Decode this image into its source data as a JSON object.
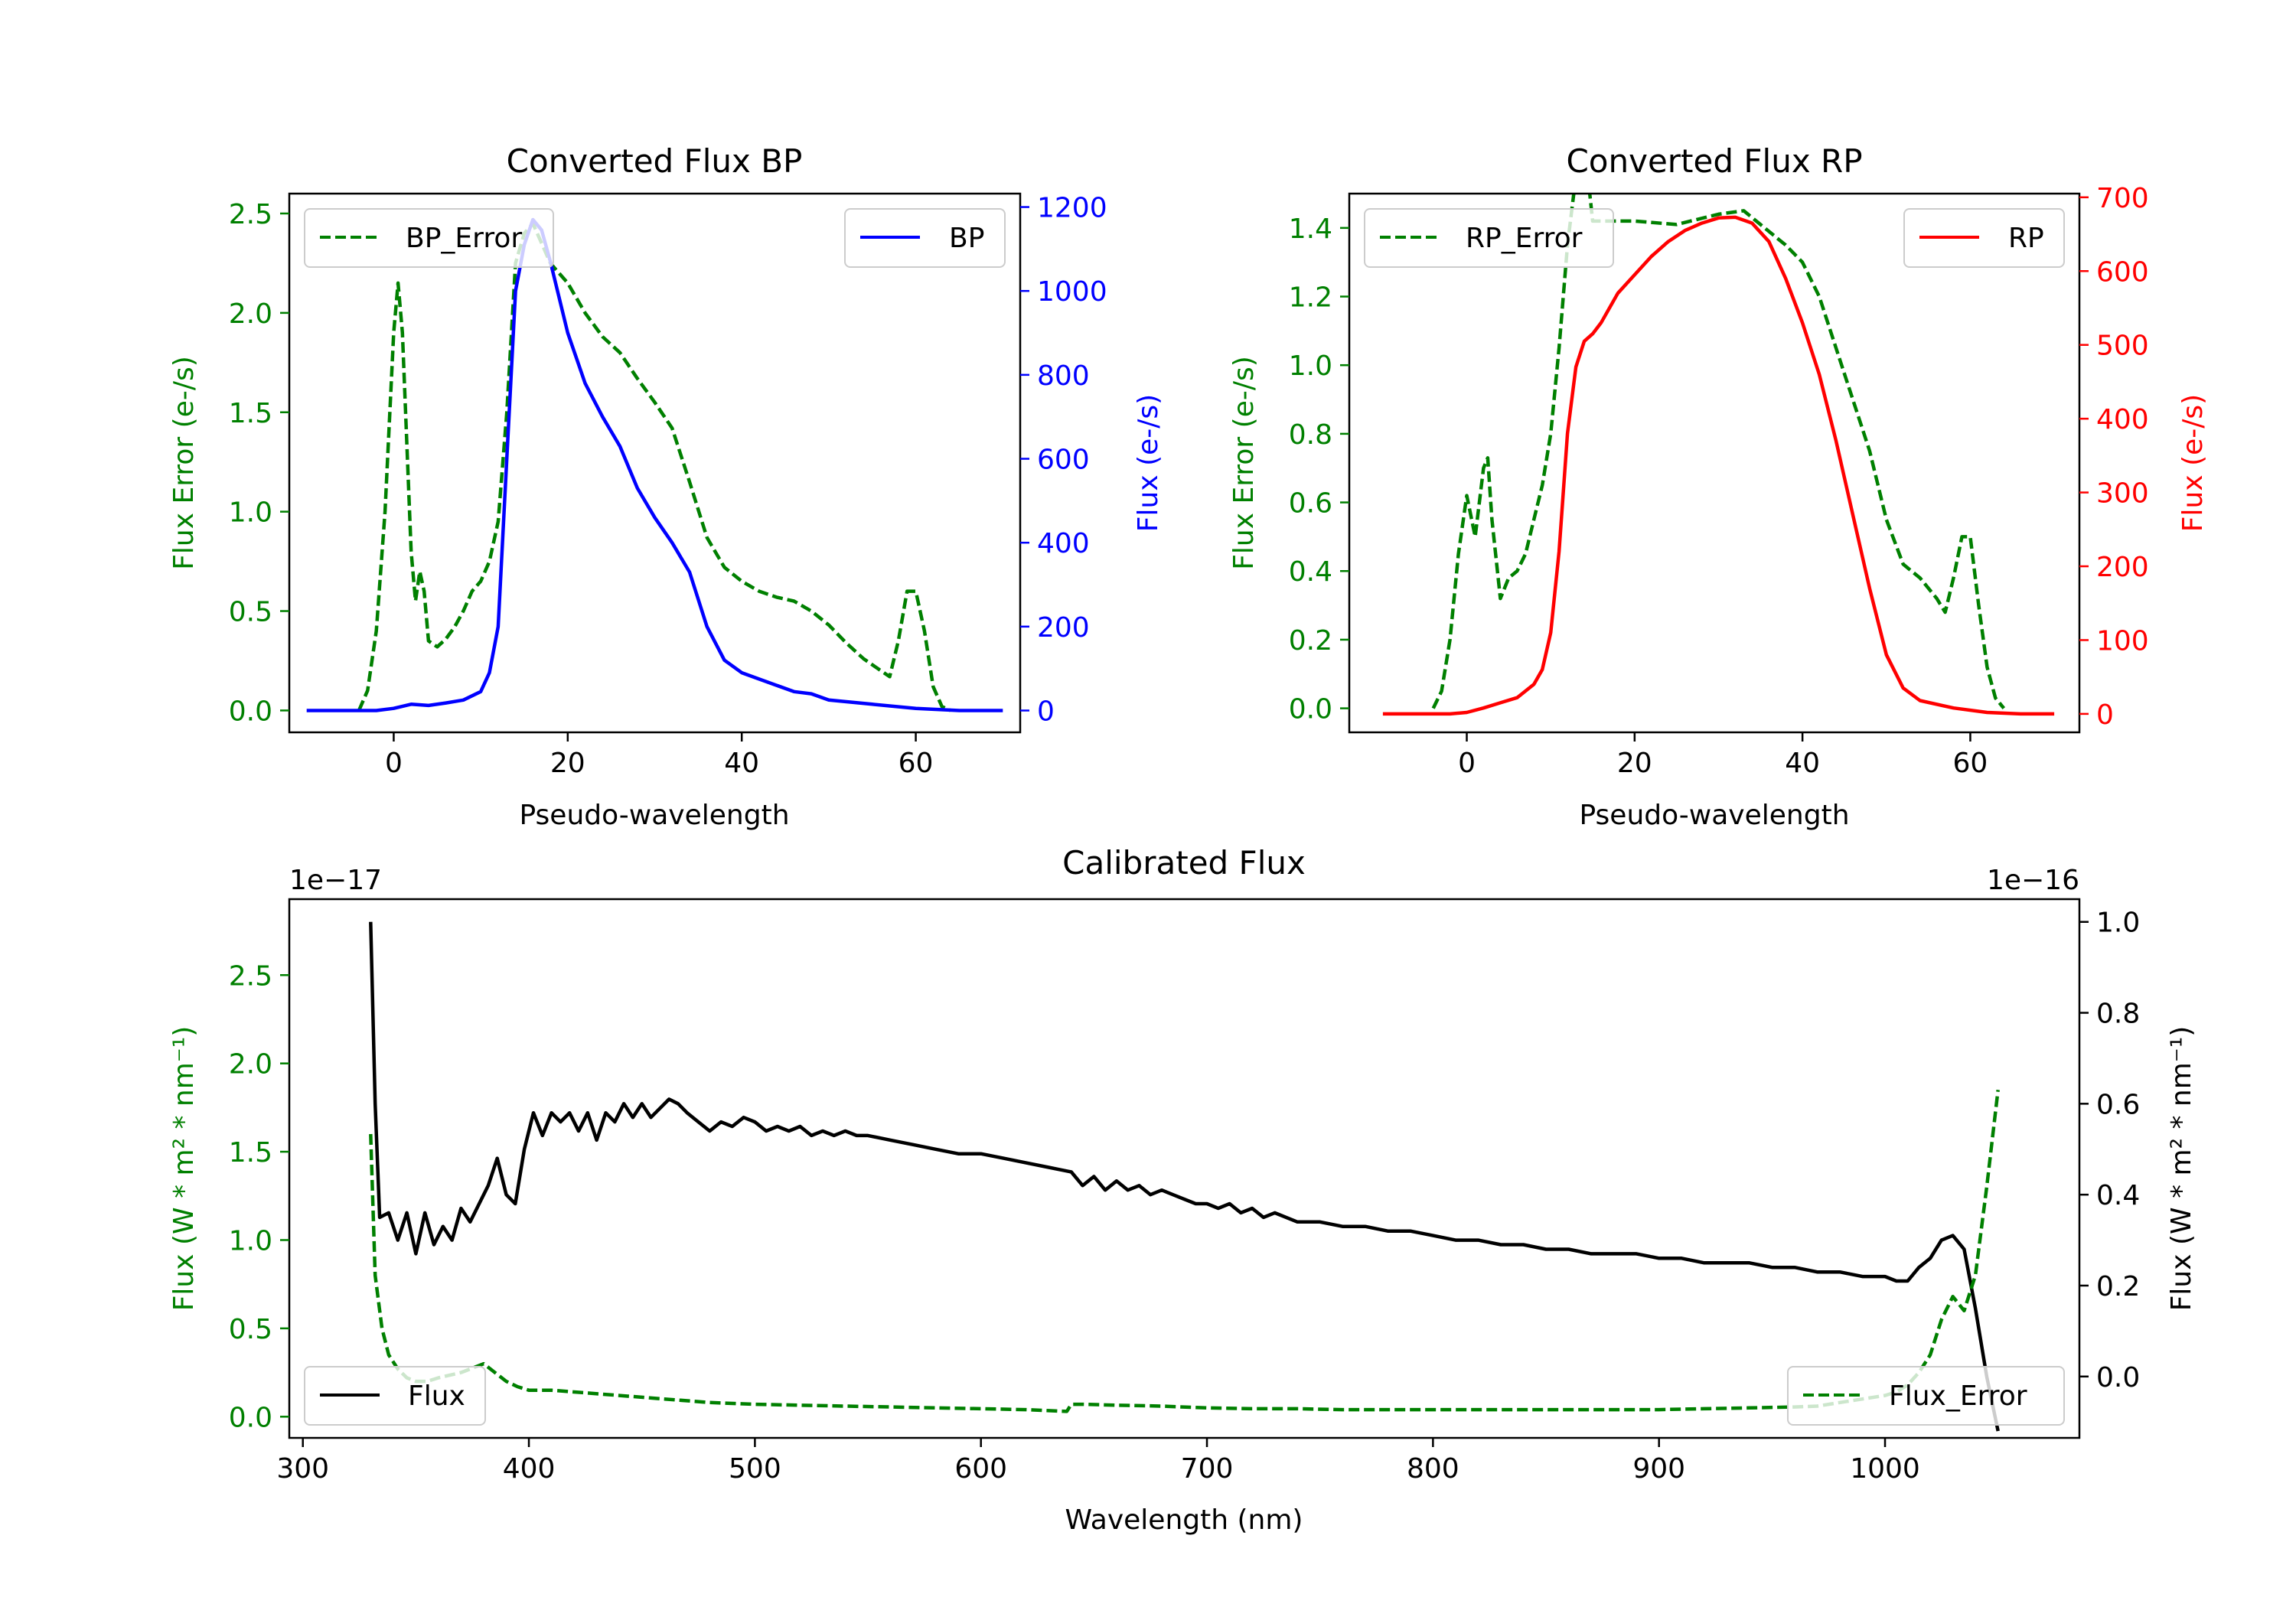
{
  "chart_data": [
    {
      "id": "bp",
      "type": "line",
      "title": "Converted Flux BP",
      "xlabel": "Pseudo-wavelength",
      "xlim": [
        -12,
        72
      ],
      "xticks": [
        0,
        20,
        40,
        60
      ],
      "left_axis": {
        "label": "Flux Error (e-/s)",
        "color": "#008000",
        "ylim": [
          -0.11,
          2.6
        ],
        "ticks": [
          "0.0",
          "0.5",
          "1.0",
          "1.5",
          "2.0",
          "2.5"
        ]
      },
      "right_axis": {
        "label": "Flux (e-/s)",
        "color": "#0000ff",
        "ylim": [
          -52,
          1232
        ],
        "ticks": [
          "0",
          "200",
          "400",
          "600",
          "800",
          "1000",
          "1200"
        ]
      },
      "series": [
        {
          "name": "BP_Error",
          "axis": "left",
          "style": "dashed",
          "color": "#008000",
          "x": [
            -4,
            -3,
            -2,
            -1,
            0,
            0.5,
            1,
            2,
            2.5,
            3,
            3.5,
            4,
            5,
            6,
            7,
            8,
            9,
            10,
            11,
            12,
            13,
            14,
            15,
            16,
            17,
            18,
            19,
            20,
            22,
            24,
            26,
            28,
            30,
            32,
            34,
            36,
            38,
            40,
            42,
            44,
            46,
            48,
            50,
            52,
            54,
            56,
            57,
            58,
            59,
            60,
            61,
            62,
            63,
            64
          ],
          "values": [
            0.0,
            0.1,
            0.4,
            1.0,
            1.9,
            2.15,
            1.9,
            0.8,
            0.55,
            0.7,
            0.6,
            0.35,
            0.32,
            0.36,
            0.42,
            0.5,
            0.6,
            0.65,
            0.75,
            0.95,
            1.5,
            2.25,
            2.4,
            2.45,
            2.35,
            2.25,
            2.2,
            2.15,
            2.0,
            1.88,
            1.8,
            1.67,
            1.55,
            1.42,
            1.15,
            0.87,
            0.72,
            0.65,
            0.6,
            0.57,
            0.55,
            0.5,
            0.43,
            0.34,
            0.26,
            0.2,
            0.17,
            0.35,
            0.6,
            0.6,
            0.4,
            0.12,
            0.02,
            0.0
          ]
        },
        {
          "name": "BP",
          "axis": "right",
          "style": "solid",
          "color": "#0000ff",
          "x": [
            -10,
            -2,
            0,
            2,
            4,
            6,
            8,
            10,
            11,
            12,
            13,
            14,
            15,
            16,
            17,
            18,
            20,
            22,
            24,
            26,
            28,
            30,
            32,
            34,
            36,
            38,
            40,
            42,
            44,
            46,
            48,
            50,
            55,
            60,
            65,
            70
          ],
          "values": [
            0,
            0,
            5,
            15,
            12,
            18,
            25,
            45,
            90,
            200,
            600,
            1000,
            1110,
            1170,
            1145,
            1070,
            900,
            780,
            700,
            630,
            530,
            460,
            400,
            330,
            200,
            120,
            90,
            75,
            60,
            45,
            40,
            25,
            15,
            5,
            0,
            0
          ]
        }
      ],
      "legend": [
        {
          "label": "BP_Error",
          "position": "upper-left"
        },
        {
          "label": "BP",
          "position": "upper-right"
        }
      ]
    },
    {
      "id": "rp",
      "type": "line",
      "title": "Converted Flux RP",
      "xlabel": "Pseudo-wavelength",
      "xlim": [
        -14,
        73
      ],
      "xticks": [
        0,
        20,
        40,
        60
      ],
      "left_axis": {
        "label": "Flux Error (e-/s)",
        "color": "#008000",
        "ylim": [
          -0.07,
          1.5
        ],
        "ticks": [
          "0.0",
          "0.2",
          "0.4",
          "0.6",
          "0.8",
          "1.0",
          "1.2",
          "1.4"
        ]
      },
      "right_axis": {
        "label": "Flux (e-/s)",
        "color": "#ff0000",
        "ylim": [
          -25,
          705
        ],
        "ticks": [
          "0",
          "100",
          "200",
          "300",
          "400",
          "500",
          "600",
          "700"
        ]
      },
      "series": [
        {
          "name": "RP_Error",
          "axis": "left",
          "style": "dashed",
          "color": "#008000",
          "x": [
            -4,
            -3,
            -2,
            -1,
            0,
            1,
            2,
            2.5,
            3,
            4,
            5,
            6,
            7,
            8,
            9,
            10,
            11,
            12,
            13,
            14,
            15,
            17,
            20,
            25,
            30,
            33,
            35,
            38,
            40,
            42,
            44,
            46,
            48,
            50,
            52,
            54,
            56,
            57,
            58,
            59,
            60,
            61,
            62,
            63,
            64
          ],
          "values": [
            0.0,
            0.05,
            0.2,
            0.45,
            0.62,
            0.5,
            0.7,
            0.73,
            0.55,
            0.32,
            0.38,
            0.4,
            0.45,
            0.55,
            0.65,
            0.8,
            1.05,
            1.35,
            1.55,
            1.65,
            1.42,
            1.42,
            1.42,
            1.41,
            1.44,
            1.45,
            1.41,
            1.35,
            1.3,
            1.2,
            1.05,
            0.9,
            0.75,
            0.55,
            0.42,
            0.38,
            0.32,
            0.28,
            0.38,
            0.5,
            0.5,
            0.3,
            0.12,
            0.03,
            0.0
          ]
        },
        {
          "name": "RP",
          "axis": "right",
          "style": "solid",
          "color": "#ff0000",
          "x": [
            -10,
            -2,
            0,
            2,
            4,
            6,
            8,
            9,
            10,
            11,
            12,
            13,
            14,
            15,
            16,
            18,
            20,
            22,
            24,
            26,
            28,
            30,
            32,
            34,
            36,
            38,
            40,
            42,
            44,
            46,
            48,
            50,
            52,
            54,
            58,
            62,
            66,
            70
          ],
          "values": [
            0,
            0,
            2,
            8,
            15,
            22,
            40,
            60,
            110,
            220,
            380,
            470,
            505,
            515,
            530,
            570,
            595,
            620,
            640,
            655,
            665,
            672,
            673,
            665,
            640,
            590,
            530,
            460,
            370,
            270,
            170,
            80,
            35,
            18,
            8,
            2,
            0,
            0
          ]
        }
      ],
      "legend": [
        {
          "label": "RP_Error",
          "position": "upper-left"
        },
        {
          "label": "RP",
          "position": "upper-right"
        }
      ]
    },
    {
      "id": "cal",
      "type": "line",
      "title": "Calibrated Flux",
      "xlabel": "Wavelength (nm)",
      "xlim": [
        294,
        1086
      ],
      "xticks": [
        300,
        400,
        500,
        600,
        700,
        800,
        900,
        1000
      ],
      "left_axis": {
        "label": "Flux (W * m² * nm⁻¹)",
        "color": "#008000",
        "ylim": [
          -0.12,
          2.93
        ],
        "ticks": [
          "0.0",
          "0.5",
          "1.0",
          "1.5",
          "2.0",
          "2.5"
        ],
        "offset_text": "1e−17"
      },
      "right_axis": {
        "label": "Flux (W * m² * nm⁻¹)",
        "color": "#000000",
        "ylim": [
          -0.135,
          1.05
        ],
        "ticks": [
          "0.0",
          "0.2",
          "0.4",
          "0.6",
          "0.8",
          "1.0"
        ],
        "offset_text": "1e−16"
      },
      "series": [
        {
          "name": "Flux",
          "axis": "right",
          "style": "solid",
          "color": "#000000",
          "x": [
            330,
            332,
            334,
            338,
            342,
            346,
            350,
            354,
            358,
            362,
            366,
            370,
            374,
            378,
            382,
            386,
            390,
            394,
            398,
            402,
            406,
            410,
            414,
            418,
            422,
            426,
            430,
            434,
            438,
            442,
            446,
            450,
            454,
            458,
            462,
            466,
            470,
            475,
            480,
            485,
            490,
            495,
            500,
            505,
            510,
            515,
            520,
            525,
            530,
            535,
            540,
            545,
            550,
            560,
            570,
            580,
            590,
            600,
            610,
            620,
            630,
            640,
            645,
            650,
            655,
            660,
            665,
            670,
            675,
            680,
            685,
            690,
            695,
            700,
            705,
            710,
            715,
            720,
            725,
            730,
            740,
            750,
            760,
            770,
            780,
            790,
            800,
            810,
            820,
            830,
            840,
            850,
            860,
            870,
            880,
            890,
            900,
            910,
            920,
            930,
            940,
            950,
            960,
            970,
            980,
            990,
            1000,
            1005,
            1010,
            1015,
            1020,
            1025,
            1030,
            1035,
            1040,
            1045,
            1050
          ],
          "values": [
            1.0,
            0.6,
            0.35,
            0.36,
            0.3,
            0.36,
            0.27,
            0.36,
            0.29,
            0.33,
            0.3,
            0.37,
            0.34,
            0.38,
            0.42,
            0.48,
            0.4,
            0.38,
            0.5,
            0.58,
            0.53,
            0.58,
            0.56,
            0.58,
            0.54,
            0.58,
            0.52,
            0.58,
            0.56,
            0.6,
            0.57,
            0.6,
            0.57,
            0.59,
            0.61,
            0.6,
            0.58,
            0.56,
            0.54,
            0.56,
            0.55,
            0.57,
            0.56,
            0.54,
            0.55,
            0.54,
            0.55,
            0.53,
            0.54,
            0.53,
            0.54,
            0.53,
            0.53,
            0.52,
            0.51,
            0.5,
            0.49,
            0.49,
            0.48,
            0.47,
            0.46,
            0.45,
            0.42,
            0.44,
            0.41,
            0.43,
            0.41,
            0.42,
            0.4,
            0.41,
            0.4,
            0.39,
            0.38,
            0.38,
            0.37,
            0.38,
            0.36,
            0.37,
            0.35,
            0.36,
            0.34,
            0.34,
            0.33,
            0.33,
            0.32,
            0.32,
            0.31,
            0.3,
            0.3,
            0.29,
            0.29,
            0.28,
            0.28,
            0.27,
            0.27,
            0.27,
            0.26,
            0.26,
            0.25,
            0.25,
            0.25,
            0.24,
            0.24,
            0.23,
            0.23,
            0.22,
            0.22,
            0.21,
            0.21,
            0.24,
            0.26,
            0.3,
            0.31,
            0.28,
            0.15,
            0.0,
            -0.12
          ]
        },
        {
          "name": "Flux_Error",
          "axis": "left",
          "style": "dashed",
          "color": "#008000",
          "x": [
            330,
            332,
            335,
            338,
            342,
            346,
            350,
            355,
            360,
            370,
            380,
            385,
            390,
            395,
            400,
            410,
            420,
            440,
            460,
            480,
            500,
            520,
            540,
            560,
            580,
            600,
            620,
            638,
            640,
            645,
            660,
            680,
            700,
            720,
            740,
            760,
            780,
            800,
            820,
            840,
            860,
            880,
            900,
            920,
            940,
            960,
            970,
            980,
            990,
            1000,
            1005,
            1010,
            1015,
            1020,
            1025,
            1030,
            1035,
            1040,
            1045,
            1050
          ],
          "values": [
            1.6,
            0.8,
            0.5,
            0.35,
            0.27,
            0.22,
            0.2,
            0.2,
            0.22,
            0.25,
            0.3,
            0.25,
            0.2,
            0.17,
            0.15,
            0.15,
            0.14,
            0.12,
            0.1,
            0.08,
            0.07,
            0.065,
            0.06,
            0.055,
            0.05,
            0.045,
            0.04,
            0.03,
            0.07,
            0.07,
            0.065,
            0.06,
            0.05,
            0.045,
            0.045,
            0.04,
            0.04,
            0.04,
            0.04,
            0.04,
            0.04,
            0.04,
            0.04,
            0.045,
            0.05,
            0.055,
            0.06,
            0.08,
            0.1,
            0.12,
            0.14,
            0.18,
            0.25,
            0.35,
            0.55,
            0.68,
            0.6,
            0.8,
            1.3,
            1.85
          ]
        }
      ],
      "legend": [
        {
          "label": "Flux",
          "position": "lower-left"
        },
        {
          "label": "Flux_Error",
          "position": "lower-right"
        }
      ]
    }
  ]
}
